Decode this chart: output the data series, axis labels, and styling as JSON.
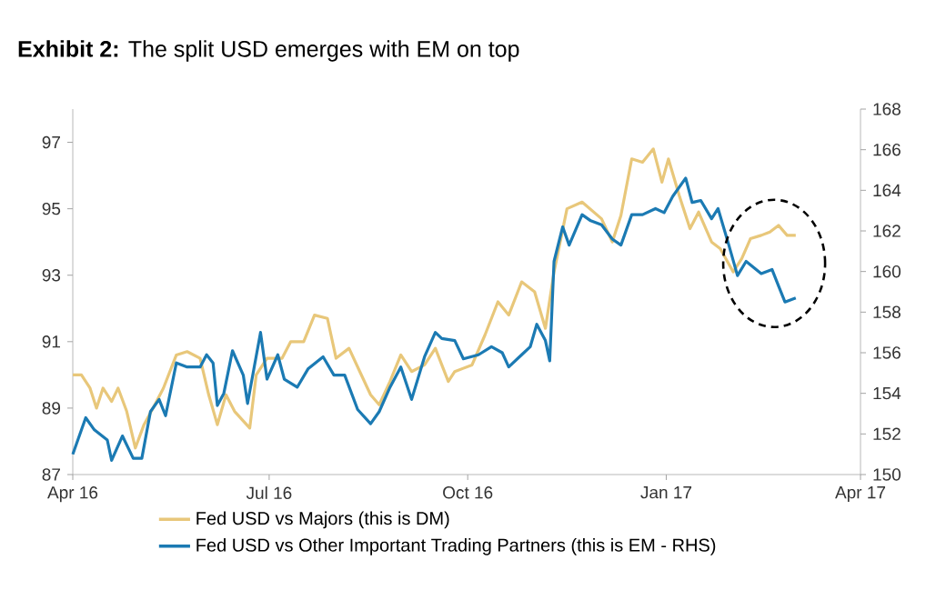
{
  "chart_data": {
    "type": "line",
    "title": "**Exhibit 2:** The split USD emerges with EM on top",
    "xlim": [
      "2016-04-01",
      "2017-04-01"
    ],
    "xticks": [
      {
        "value": "2016-04-01",
        "label": "Apr 16"
      },
      {
        "value": "2016-07-01",
        "label": "Jul 16"
      },
      {
        "value": "2016-10-01",
        "label": "Oct 16"
      },
      {
        "value": "2017-01-01",
        "label": "Jan 17"
      },
      {
        "value": "2017-04-01",
        "label": "Apr 17"
      }
    ],
    "ylim": [
      87,
      98
    ],
    "yticks": [
      87,
      89,
      91,
      93,
      95,
      97
    ],
    "y2lim": [
      150,
      168
    ],
    "y2ticks": [
      150,
      152,
      154,
      156,
      158,
      160,
      162,
      164,
      166,
      168
    ],
    "grid": false,
    "legend": "bottom",
    "marker": "none",
    "line_style": "solid",
    "series": [
      {
        "name": "Fed USD vs Majors (this is DM)",
        "color": "#e8c77a",
        "x": [
          "2016-04-01",
          "2016-04-05",
          "2016-04-09",
          "2016-04-12",
          "2016-04-15",
          "2016-04-19",
          "2016-04-22",
          "2016-04-26",
          "2016-04-30",
          "2016-05-04",
          "2016-05-09",
          "2016-05-13",
          "2016-05-19",
          "2016-05-24",
          "2016-05-30",
          "2016-06-03",
          "2016-06-07",
          "2016-06-11",
          "2016-06-15",
          "2016-06-22",
          "2016-06-25",
          "2016-06-30",
          "2016-07-07",
          "2016-07-11",
          "2016-07-17",
          "2016-07-22",
          "2016-07-28",
          "2016-08-01",
          "2016-08-07",
          "2016-08-12",
          "2016-08-17",
          "2016-08-21",
          "2016-08-26",
          "2016-08-31",
          "2016-09-05",
          "2016-09-11",
          "2016-09-16",
          "2016-09-22",
          "2016-09-25",
          "2016-10-03",
          "2016-10-09",
          "2016-10-15",
          "2016-10-20",
          "2016-10-26",
          "2016-11-01",
          "2016-11-06",
          "2016-11-10",
          "2016-11-16",
          "2016-11-23",
          "2016-12-02",
          "2016-12-07",
          "2016-12-11",
          "2016-12-16",
          "2016-12-21",
          "2016-12-26",
          "2016-12-30",
          "2017-01-02",
          "2017-01-07",
          "2017-01-12",
          "2017-01-16",
          "2017-01-22",
          "2017-01-26",
          "2017-02-01",
          "2017-02-05",
          "2017-02-09",
          "2017-02-14",
          "2017-02-18",
          "2017-02-22",
          "2017-02-26",
          "2017-03-02"
        ],
        "values": [
          90.0,
          90.0,
          89.6,
          89.0,
          89.6,
          89.2,
          89.6,
          88.9,
          87.8,
          88.5,
          89.1,
          89.6,
          90.6,
          90.7,
          90.5,
          89.4,
          88.5,
          89.4,
          88.9,
          88.4,
          90.0,
          90.5,
          90.5,
          91.0,
          91.0,
          91.8,
          91.7,
          90.5,
          90.8,
          90.1,
          89.4,
          89.1,
          89.8,
          90.6,
          90.1,
          90.3,
          90.8,
          89.8,
          90.1,
          90.3,
          91.2,
          92.2,
          91.8,
          92.8,
          92.5,
          91.4,
          93.1,
          95.0,
          95.2,
          94.7,
          94.0,
          94.8,
          96.5,
          96.4,
          96.8,
          95.8,
          96.5,
          95.4,
          94.4,
          94.9,
          94.0,
          93.8,
          93.1,
          93.5,
          94.1,
          94.2,
          94.3,
          94.5,
          94.2,
          94.2
        ]
      },
      {
        "name": "Fed USD vs Other Important Trading Partners (this is EM - RHS)",
        "color": "#1b7ab3",
        "axis": "y2",
        "x": [
          "2016-04-01",
          "2016-04-07",
          "2016-04-11",
          "2016-04-17",
          "2016-04-19",
          "2016-04-24",
          "2016-04-29",
          "2016-05-03",
          "2016-05-07",
          "2016-05-11",
          "2016-05-14",
          "2016-05-19",
          "2016-05-24",
          "2016-05-30",
          "2016-06-02",
          "2016-06-05",
          "2016-06-07",
          "2016-06-10",
          "2016-06-14",
          "2016-06-19",
          "2016-06-21",
          "2016-06-27",
          "2016-06-30",
          "2016-07-05",
          "2016-07-08",
          "2016-07-14",
          "2016-07-19",
          "2016-07-26",
          "2016-07-31",
          "2016-08-05",
          "2016-08-11",
          "2016-08-17",
          "2016-08-21",
          "2016-08-26",
          "2016-08-31",
          "2016-09-05",
          "2016-09-11",
          "2016-09-16",
          "2016-09-19",
          "2016-09-25",
          "2016-09-29",
          "2016-10-06",
          "2016-10-12",
          "2016-10-17",
          "2016-10-20",
          "2016-10-26",
          "2016-10-30",
          "2016-11-02",
          "2016-11-06",
          "2016-11-08",
          "2016-11-10",
          "2016-11-14",
          "2016-11-17",
          "2016-11-23",
          "2016-11-27",
          "2016-12-02",
          "2016-12-07",
          "2016-12-11",
          "2016-12-16",
          "2016-12-21",
          "2016-12-27",
          "2016-12-31",
          "2017-01-04",
          "2017-01-10",
          "2017-01-13",
          "2017-01-17",
          "2017-01-22",
          "2017-01-25",
          "2017-01-30",
          "2017-02-03",
          "2017-02-07",
          "2017-02-14",
          "2017-02-19",
          "2017-02-22",
          "2017-02-25",
          "2017-03-02"
        ],
        "values": [
          151.0,
          152.8,
          152.2,
          151.7,
          150.7,
          151.9,
          150.8,
          150.8,
          153.1,
          153.7,
          152.9,
          155.5,
          155.3,
          155.3,
          155.9,
          155.5,
          153.4,
          154.0,
          156.1,
          154.9,
          153.5,
          157.0,
          154.7,
          155.9,
          154.7,
          154.3,
          155.2,
          155.8,
          154.9,
          154.9,
          153.2,
          152.5,
          153.1,
          154.3,
          155.3,
          153.7,
          155.8,
          157.0,
          156.7,
          156.6,
          155.7,
          155.9,
          156.3,
          156.0,
          155.3,
          155.9,
          156.3,
          157.4,
          156.6,
          155.6,
          160.5,
          162.2,
          161.3,
          162.8,
          162.5,
          162.3,
          161.6,
          161.3,
          162.8,
          162.8,
          163.1,
          162.9,
          163.7,
          164.6,
          163.4,
          163.5,
          162.6,
          163.1,
          161.3,
          159.8,
          160.5,
          159.9,
          160.1,
          159.3,
          158.5,
          158.7
        ]
      }
    ]
  }
}
